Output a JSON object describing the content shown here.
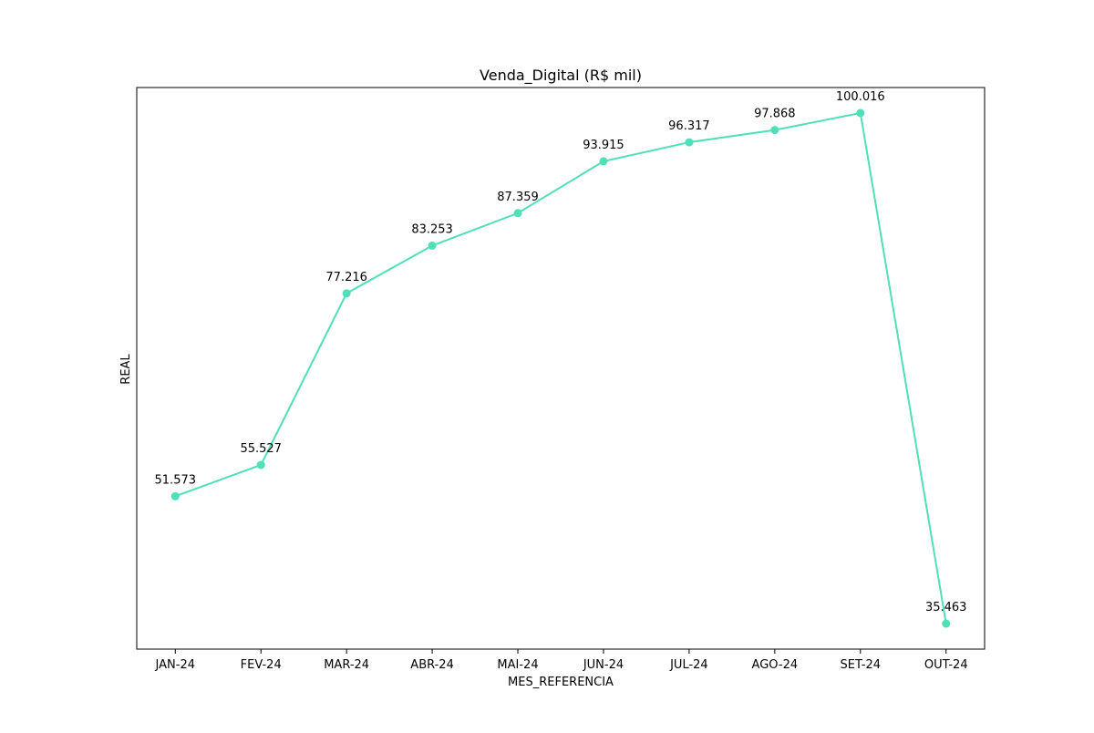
{
  "chart_data": {
    "type": "line",
    "title": "Venda_Digital (R$ mil)",
    "xlabel": "MES_REFERENCIA",
    "ylabel": "REAL",
    "categories": [
      "JAN-24",
      "FEV-24",
      "MAR-24",
      "ABR-24",
      "MAI-24",
      "JUN-24",
      "JUL-24",
      "AGO-24",
      "SET-24",
      "OUT-24"
    ],
    "values": [
      51.573,
      55.527,
      77.216,
      83.253,
      87.359,
      93.915,
      96.317,
      97.868,
      100.016,
      35.463
    ],
    "value_labels": [
      "51.573",
      "55.527",
      "77.216",
      "83.253",
      "87.359",
      "93.915",
      "96.317",
      "97.868",
      "100.016",
      "35.463"
    ],
    "ylim": [
      32.24,
      103.24
    ],
    "y_ticks_shown": false,
    "grid": false,
    "legend": false,
    "marker": "circle",
    "color": "#4fdfb9"
  }
}
